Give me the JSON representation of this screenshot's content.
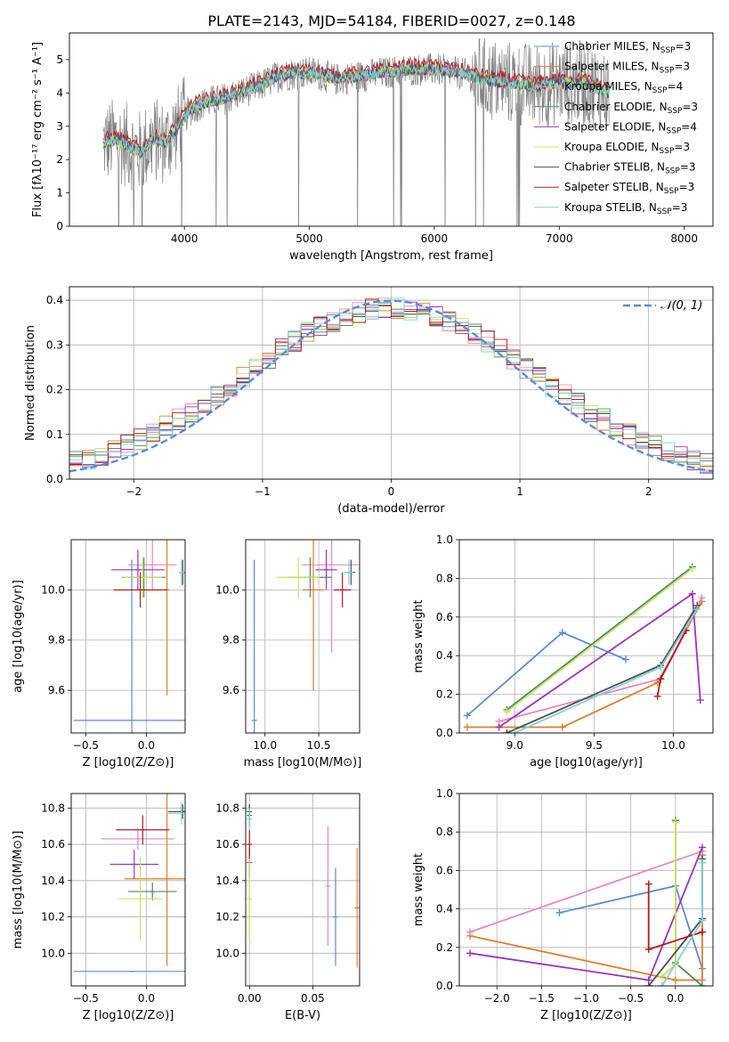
{
  "figure": {
    "title": "PLATE=2143, MJD=54184, FIBERID=0027, z=0.148"
  },
  "colors": {
    "observed": "#808080",
    "gauss": "#5b8bd4",
    "grid": "#b0b0b0",
    "series": [
      "#5b8bd4",
      "#e07f2a",
      "#e887c2",
      "#4b8b63",
      "#9b34b8",
      "#c7e55b",
      "#505050",
      "#b31c1c",
      "#7ed3d8"
    ]
  },
  "chart_data": [
    {
      "id": "spectrum",
      "type": "line",
      "xlabel": "wavelength [Angstrom, rest frame]",
      "ylabel": "Flux [fλ10⁻¹⁷ erg cm⁻² s⁻¹ A⁻¹]",
      "xlim": [
        3080,
        8230
      ],
      "ylim": [
        0,
        5.8
      ],
      "xticks": [
        4000,
        5000,
        6000,
        7000,
        8000
      ],
      "yticks": [
        0,
        1,
        2,
        3,
        4,
        5
      ],
      "grid": false,
      "legend_position": "right",
      "legend": [
        "Chabrier MILES, N_SSP=3",
        "Salpeter MILES, N_SSP=3",
        "Kroupa MILES, N_SSP=4",
        "Chabrier ELODIE, N_SSP=3",
        "Salpeter ELODIE, N_SSP=4",
        "Kroupa ELODIE, N_SSP=3",
        "Chabrier STELIB, N_SSP=3",
        "Salpeter STELIB, N_SSP=3",
        "Kroupa STELIB, N_SSP=3"
      ],
      "continuum": [
        [
          3350,
          2.5
        ],
        [
          3450,
          2.6
        ],
        [
          3550,
          2.4
        ],
        [
          3650,
          2.2
        ],
        [
          3750,
          2.6
        ],
        [
          3850,
          2.5
        ],
        [
          3950,
          3.0
        ],
        [
          4050,
          3.5
        ],
        [
          4150,
          3.7
        ],
        [
          4300,
          3.8
        ],
        [
          4450,
          4.0
        ],
        [
          4600,
          4.2
        ],
        [
          4750,
          4.5
        ],
        [
          4900,
          4.6
        ],
        [
          5050,
          4.6
        ],
        [
          5200,
          4.4
        ],
        [
          5400,
          4.5
        ],
        [
          5600,
          4.6
        ],
        [
          5800,
          4.7
        ],
        [
          6000,
          4.7
        ],
        [
          6200,
          4.6
        ],
        [
          6400,
          4.4
        ],
        [
          6600,
          4.3
        ],
        [
          6800,
          4.2
        ],
        [
          7000,
          4.3
        ],
        [
          7200,
          4.3
        ],
        [
          7400,
          4.0
        ]
      ]
    },
    {
      "id": "residuals",
      "type": "histogram",
      "xlabel": "(data-model)/error",
      "ylabel": "Normed distribution",
      "xlim": [
        -2.5,
        2.5
      ],
      "ylim": [
        0,
        0.43
      ],
      "xticks": [
        -2,
        -1,
        0,
        1,
        2
      ],
      "yticks": [
        0.0,
        0.1,
        0.2,
        0.3,
        0.4
      ],
      "grid": true,
      "legend": [
        "N(0, 1)"
      ],
      "legend_position": "top-right",
      "bin_width": 0.1
    },
    {
      "id": "age-vs-Z",
      "type": "scatter",
      "xlabel": "Z [log10(Z/Z⊙)]",
      "ylabel": "age [log10(age/yr)]",
      "xlim": [
        -0.62,
        0.32
      ],
      "ylim": [
        9.43,
        10.2
      ],
      "xticks": [
        -0.5,
        0.0
      ],
      "yticks": [
        9.6,
        9.8,
        10.0
      ],
      "grid": true,
      "points": [
        {
          "x": -0.12,
          "y": 9.48,
          "xerr": 0.48,
          "yerr": 0.64,
          "c": 0
        },
        {
          "x": 0.17,
          "y": 10.0,
          "xerr": 0.01,
          "yerr": 0.42,
          "c": 1
        },
        {
          "x": 0.05,
          "y": 10.1,
          "xerr": 0.2,
          "yerr": 0.1,
          "c": 2
        },
        {
          "x": -0.02,
          "y": 10.05,
          "xerr": 0.18,
          "yerr": 0.08,
          "c": 3
        },
        {
          "x": -0.07,
          "y": 10.08,
          "xerr": 0.22,
          "yerr": 0.08,
          "c": 4
        },
        {
          "x": -0.03,
          "y": 10.05,
          "xerr": 0.16,
          "yerr": 0.08,
          "c": 5
        },
        {
          "x": 0.3,
          "y": 10.07,
          "xerr": 0.02,
          "yerr": 0.05,
          "c": 6
        },
        {
          "x": -0.05,
          "y": 10.0,
          "xerr": 0.22,
          "yerr": 0.07,
          "c": 7
        },
        {
          "x": 0.29,
          "y": 10.07,
          "xerr": 0.02,
          "yerr": 0.05,
          "c": 8
        }
      ]
    },
    {
      "id": "age-vs-mass",
      "type": "scatter",
      "xlabel": "mass [log10(M/M⊙)]",
      "ylabel": "",
      "xlim": [
        9.82,
        10.88
      ],
      "ylim": [
        9.43,
        10.2
      ],
      "xticks": [
        10.0,
        10.5
      ],
      "yticks": [
        9.6,
        9.8,
        10.0
      ],
      "grid": true,
      "points": [
        {
          "x": 9.9,
          "y": 9.48,
          "xerr": 0.0,
          "yerr": 0.64,
          "c": 0
        },
        {
          "x": 10.45,
          "y": 10.0,
          "xerr": 0.1,
          "yerr": 0.4,
          "c": 1
        },
        {
          "x": 10.62,
          "y": 10.1,
          "xerr": 0.28,
          "yerr": 0.35,
          "c": 2
        },
        {
          "x": 10.42,
          "y": 10.05,
          "xerr": 0.2,
          "yerr": 0.08,
          "c": 3
        },
        {
          "x": 10.57,
          "y": 10.08,
          "xerr": 0.1,
          "yerr": 0.08,
          "c": 4
        },
        {
          "x": 10.31,
          "y": 10.05,
          "xerr": 0.2,
          "yerr": 0.08,
          "c": 5
        },
        {
          "x": 10.8,
          "y": 10.07,
          "xerr": 0.04,
          "yerr": 0.05,
          "c": 6
        },
        {
          "x": 10.72,
          "y": 10.0,
          "xerr": 0.08,
          "yerr": 0.07,
          "c": 7
        },
        {
          "x": 10.78,
          "y": 10.07,
          "xerr": 0.04,
          "yerr": 0.05,
          "c": 8
        }
      ]
    },
    {
      "id": "mass-weight-vs-age",
      "type": "line",
      "xlabel": "age [log10(age/yr)]",
      "ylabel": "mass weight",
      "xlim": [
        8.65,
        10.25
      ],
      "ylim": [
        0,
        1
      ],
      "xticks": [
        9.0,
        9.5,
        10.0
      ],
      "yticks": [
        0.0,
        0.2,
        0.4,
        0.6,
        0.8,
        1.0
      ],
      "grid": true,
      "series": [
        {
          "c": 0,
          "x": [
            8.7,
            9.3,
            9.7
          ],
          "y": [
            0.09,
            0.52,
            0.38
          ]
        },
        {
          "c": 1,
          "x": [
            8.7,
            9.3,
            9.9,
            10.18
          ],
          "y": [
            0.03,
            0.03,
            0.26,
            0.68
          ]
        },
        {
          "c": 2,
          "x": [
            8.9,
            9.92,
            10.18
          ],
          "y": [
            0.06,
            0.28,
            0.7
          ]
        },
        {
          "c": 3,
          "x": [
            8.95,
            10.12
          ],
          "y": [
            0.12,
            0.86
          ]
        },
        {
          "c": 4,
          "x": [
            8.9,
            10.12,
            10.17
          ],
          "y": [
            0.03,
            0.72,
            0.17
          ]
        },
        {
          "c": 5,
          "x": [
            8.95,
            10.12
          ],
          "y": [
            0.11,
            0.85
          ]
        },
        {
          "c": 6,
          "x": [
            8.95,
            9.92,
            10.15
          ],
          "y": [
            0.0,
            0.35,
            0.66
          ]
        },
        {
          "c": 7,
          "x": [
            9.9,
            9.92,
            10.08
          ],
          "y": [
            0.19,
            0.28,
            0.53
          ]
        },
        {
          "c": 8,
          "x": [
            9.0,
            9.92,
            10.15
          ],
          "y": [
            0.0,
            0.34,
            0.64
          ]
        }
      ]
    },
    {
      "id": "mass-vs-Z",
      "type": "scatter",
      "xlabel": "Z [log10(Z/Z⊙)]",
      "ylabel": "mass [log10(M/M⊙)]",
      "xlim": [
        -0.62,
        0.32
      ],
      "ylim": [
        9.82,
        10.88
      ],
      "xticks": [
        -0.5,
        0.0
      ],
      "yticks": [
        10.0,
        10.2,
        10.4,
        10.6,
        10.8
      ],
      "grid": true,
      "points": [
        {
          "x": -0.12,
          "y": 9.9,
          "xerr": 0.48,
          "yerr": 0.0,
          "c": 0
        },
        {
          "x": 0.17,
          "y": 10.41,
          "xerr": 0.35,
          "yerr": 0.48,
          "c": 1
        },
        {
          "x": -0.07,
          "y": 10.63,
          "xerr": 0.3,
          "yerr": 0.06,
          "c": 2
        },
        {
          "x": 0.05,
          "y": 10.34,
          "xerr": 0.2,
          "yerr": 0.05,
          "c": 3
        },
        {
          "x": -0.1,
          "y": 10.49,
          "xerr": 0.2,
          "yerr": 0.08,
          "c": 4
        },
        {
          "x": -0.05,
          "y": 10.3,
          "xerr": 0.18,
          "yerr": 0.23,
          "c": 5
        },
        {
          "x": 0.3,
          "y": 10.78,
          "xerr": 0.12,
          "yerr": 0.04,
          "c": 6
        },
        {
          "x": -0.03,
          "y": 10.68,
          "xerr": 0.22,
          "yerr": 0.08,
          "c": 7
        },
        {
          "x": 0.29,
          "y": 10.77,
          "xerr": 0.12,
          "yerr": 0.06,
          "c": 8
        }
      ]
    },
    {
      "id": "mass-vs-EBV",
      "type": "scatter",
      "xlabel": "E(B-V)",
      "ylabel": "",
      "xlim": [
        -0.003,
        0.087
      ],
      "ylim": [
        9.82,
        10.88
      ],
      "xticks": [
        0.0,
        0.05
      ],
      "yticks": [
        10.0,
        10.2,
        10.4,
        10.6,
        10.8
      ],
      "grid": true,
      "points": [
        {
          "x": 0.068,
          "y": 10.2,
          "xerr": 0,
          "yerr": 0.27,
          "c": 0
        },
        {
          "x": 0.085,
          "y": 10.25,
          "xerr": 0,
          "yerr": 0.33,
          "c": 1
        },
        {
          "x": 0.062,
          "y": 10.37,
          "xerr": 0,
          "yerr": 0.33,
          "c": 2
        },
        {
          "x": 0.0,
          "y": 10.76,
          "xerr": 0,
          "yerr": 0.06,
          "c": 3
        },
        {
          "x": 0.0,
          "y": 10.5,
          "xerr": 0,
          "yerr": 0.08,
          "c": 4
        },
        {
          "x": 0.0,
          "y": 10.3,
          "xerr": 0,
          "yerr": 0.23,
          "c": 5
        },
        {
          "x": 0.0,
          "y": 10.78,
          "xerr": 0,
          "yerr": 0.04,
          "c": 6
        },
        {
          "x": 0.0,
          "y": 10.6,
          "xerr": 0,
          "yerr": 0.08,
          "c": 7
        },
        {
          "x": 0.0,
          "y": 10.74,
          "xerr": 0,
          "yerr": 0.06,
          "c": 8
        }
      ]
    },
    {
      "id": "mass-weight-vs-Z",
      "type": "line",
      "xlabel": "Z [log10(Z/Z⊙)]",
      "ylabel": "mass weight",
      "xlim": [
        -2.42,
        0.42
      ],
      "ylim": [
        0,
        1
      ],
      "xticks": [
        -2.0,
        -1.5,
        -1.0,
        -0.5,
        0.0
      ],
      "yticks": [
        0.0,
        0.2,
        0.4,
        0.6,
        0.8,
        1.0
      ],
      "grid": true,
      "series": [
        {
          "c": 0,
          "x": [
            -1.3,
            0.0,
            0.3
          ],
          "y": [
            0.38,
            0.52,
            0.09
          ]
        },
        {
          "c": 1,
          "x": [
            -2.3,
            0.0,
            0.3,
            0.3
          ],
          "y": [
            0.26,
            0.03,
            0.03,
            0.68
          ]
        },
        {
          "c": 2,
          "x": [
            -2.3,
            0.3
          ],
          "y": [
            0.28,
            0.7
          ]
        },
        {
          "c": 3,
          "x": [
            0.0,
            0.0,
            0.3
          ],
          "y": [
            0.86,
            0.12,
            0.0
          ]
        },
        {
          "c": 4,
          "x": [
            -2.3,
            -0.3,
            0.3
          ],
          "y": [
            0.17,
            0.03,
            0.72
          ]
        },
        {
          "c": 5,
          "x": [
            0.0,
            0.0,
            -0.15
          ],
          "y": [
            0.85,
            0.11,
            0.05
          ]
        },
        {
          "c": 6,
          "x": [
            -0.3,
            0.3,
            0.3
          ],
          "y": [
            0.0,
            0.35,
            0.66
          ]
        },
        {
          "c": 7,
          "x": [
            -0.3,
            -0.3,
            0.3,
            0.3
          ],
          "y": [
            0.53,
            0.19,
            0.28,
            0.28
          ]
        },
        {
          "c": 8,
          "x": [
            -0.15,
            0.3,
            0.3
          ],
          "y": [
            0.0,
            0.34,
            0.64
          ]
        }
      ]
    }
  ]
}
